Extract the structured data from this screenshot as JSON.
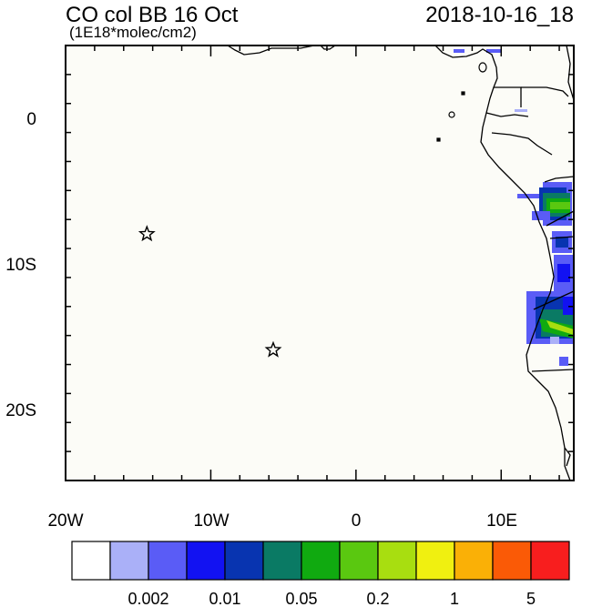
{
  "header": {
    "title": "CO col BB 16 Oct",
    "units": "(1E18*molec/cm2)",
    "datetime": "2018-10-16_18"
  },
  "map": {
    "lon_range": [
      -20,
      15
    ],
    "lat_range": [
      -25,
      5
    ],
    "x_ticks": [
      "20W",
      "10W",
      "0",
      "10E"
    ],
    "y_ticks": [
      "0",
      "10S",
      "20S"
    ],
    "markers": [
      {
        "type": "star",
        "lon": -14.4,
        "lat": -8.0
      },
      {
        "type": "star",
        "lon": -5.7,
        "lat": -16.0
      }
    ],
    "background_color": "#fcfcf7",
    "coast_color": "#000000"
  },
  "colorbar": {
    "colors": [
      "#ffffff",
      "#aab0f8",
      "#5a5cf6",
      "#1212f2",
      "#0834b0",
      "#0a7a64",
      "#10aa10",
      "#5ac810",
      "#a8de10",
      "#f0f010",
      "#fab006",
      "#fa5a06",
      "#f81e1e"
    ],
    "labels": [
      "0.002",
      "0.01",
      "0.05",
      "0.2",
      "1",
      "5"
    ]
  }
}
